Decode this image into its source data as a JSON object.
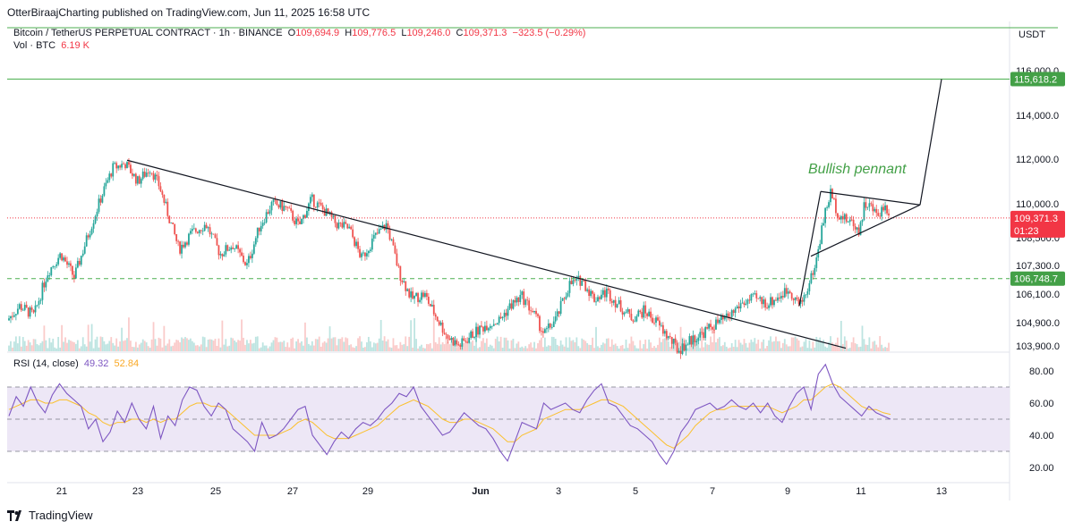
{
  "publisher": "OtterBiraajCharting published on TradingView.com, Jun 11, 2025 16:58 UTC",
  "symbol": "Bitcoin / TetherUS PERPETUAL CONTRACT · 1h · BINANCE",
  "ohlc": {
    "o_key": "O",
    "o": "109,694.9",
    "h_key": "H",
    "h": "109,776.5",
    "l_key": "L",
    "l": "109,246.0",
    "c_key": "C",
    "c": "109,371.3",
    "change": "−323.5 (−0.29%)"
  },
  "volume": {
    "label": "Vol · BTC",
    "value": "6.19 K"
  },
  "rsi_legend": {
    "label": "RSI (14, close)",
    "rsi": "49.32",
    "ma": "52.84"
  },
  "currency": "USDT",
  "logo": "TradingView",
  "colors": {
    "up": "#26a69a",
    "down": "#ef5350",
    "trend": "#131722",
    "level_green": "#4caf50",
    "rsi_line": "#7e57c2",
    "rsi_ma": "#fbc02d",
    "rsi_band": "#ede7f6",
    "price_line": "#f23645"
  },
  "chart_data": [
    {
      "type": "candlestick",
      "title": "Bitcoin / TetherUS PERPETUAL CONTRACT · 1h · BINANCE",
      "x_tick_labels": [
        "21",
        "23",
        "25",
        "27",
        "29",
        "Jun",
        "3",
        "5",
        "7",
        "9",
        "11",
        "13"
      ],
      "y_tick_labels": [
        "116,000.0",
        "114,000.0",
        "112,000.0",
        "110,000.0",
        "108,500.0",
        "107,300.0",
        "106,100.0",
        "104,900.0",
        "103,900.0"
      ],
      "ylim": [
        103700,
        117000
      ],
      "price_keypoints": [
        [
          0,
          105000
        ],
        [
          14,
          105600
        ],
        [
          30,
          105200
        ],
        [
          45,
          107000
        ],
        [
          60,
          107800
        ],
        [
          75,
          106800
        ],
        [
          92,
          108800
        ],
        [
          105,
          110300
        ],
        [
          118,
          111600
        ],
        [
          132,
          111800
        ],
        [
          146,
          111000
        ],
        [
          160,
          111600
        ],
        [
          170,
          110800
        ],
        [
          180,
          109500
        ],
        [
          192,
          108000
        ],
        [
          206,
          108700
        ],
        [
          222,
          109100
        ],
        [
          238,
          107800
        ],
        [
          252,
          108200
        ],
        [
          268,
          107300
        ],
        [
          282,
          109000
        ],
        [
          296,
          110000
        ],
        [
          312,
          109800
        ],
        [
          326,
          109000
        ],
        [
          340,
          110200
        ],
        [
          354,
          109700
        ],
        [
          368,
          109100
        ],
        [
          382,
          108900
        ],
        [
          396,
          107600
        ],
        [
          410,
          108500
        ],
        [
          424,
          109100
        ],
        [
          438,
          107000
        ],
        [
          452,
          105900
        ],
        [
          466,
          106100
        ],
        [
          480,
          105100
        ],
        [
          492,
          104300
        ],
        [
          505,
          103900
        ],
        [
          520,
          104400
        ],
        [
          535,
          104800
        ],
        [
          550,
          105000
        ],
        [
          562,
          105600
        ],
        [
          575,
          106000
        ],
        [
          588,
          105300
        ],
        [
          600,
          104400
        ],
        [
          614,
          105100
        ],
        [
          628,
          106500
        ],
        [
          642,
          106700
        ],
        [
          656,
          105900
        ],
        [
          670,
          106200
        ],
        [
          684,
          105600
        ],
        [
          698,
          105100
        ],
        [
          712,
          105400
        ],
        [
          726,
          104900
        ],
        [
          738,
          104300
        ],
        [
          750,
          103700
        ],
        [
          762,
          104100
        ],
        [
          775,
          104400
        ],
        [
          790,
          104800
        ],
        [
          805,
          105100
        ],
        [
          820,
          105700
        ],
        [
          835,
          105900
        ],
        [
          850,
          105700
        ],
        [
          862,
          106000
        ],
        [
          874,
          106300
        ],
        [
          886,
          105600
        ],
        [
          896,
          106500
        ],
        [
          904,
          107500
        ],
        [
          912,
          109300
        ],
        [
          920,
          110500
        ],
        [
          928,
          109600
        ],
        [
          936,
          109300
        ],
        [
          944,
          109200
        ],
        [
          952,
          108800
        ],
        [
          958,
          110000
        ],
        [
          964,
          109900
        ],
        [
          972,
          109500
        ],
        [
          980,
          109900
        ],
        [
          988,
          109500
        ],
        [
          995,
          109371
        ]
      ],
      "candle_count": 500,
      "last_price_label": "109,371.3",
      "countdown": "01:23",
      "level_labels": [
        "115,618.2",
        "106,748.7"
      ],
      "annotation": "Bullish pennant"
    },
    {
      "type": "line",
      "title": "RSI (14, close)",
      "series": [
        {
          "name": "RSI",
          "values": [
            52,
            64,
            58,
            70,
            60,
            54,
            65,
            72,
            66,
            62,
            58,
            44,
            50,
            36,
            42,
            55,
            48,
            60,
            50,
            44,
            58,
            38,
            52,
            46,
            62,
            70,
            68,
            58,
            52,
            60,
            56,
            44,
            40,
            36,
            30,
            48,
            38,
            40,
            44,
            50,
            56,
            58,
            40,
            34,
            28,
            36,
            42,
            38,
            44,
            48,
            46,
            50,
            56,
            60,
            66,
            64,
            70,
            58,
            52,
            46,
            40,
            42,
            48,
            54,
            50,
            46,
            44,
            38,
            30,
            24,
            36,
            48,
            46,
            44,
            60,
            56,
            58,
            60,
            56,
            54,
            62,
            68,
            72,
            60,
            58,
            52,
            46,
            44,
            40,
            36,
            28,
            22,
            30,
            42,
            48,
            56,
            58,
            60,
            56,
            58,
            62,
            58,
            56,
            60,
            54,
            60,
            52,
            48,
            58,
            66,
            70,
            56,
            78,
            84,
            72,
            64,
            60,
            56,
            52,
            58,
            54,
            52,
            50
          ]
        },
        {
          "name": "RSI-based MA",
          "values": [
            56,
            58,
            60,
            62,
            62,
            60,
            60,
            62,
            62,
            60,
            58,
            54,
            52,
            48,
            46,
            48,
            48,
            50,
            50,
            48,
            50,
            48,
            50,
            50,
            54,
            58,
            60,
            60,
            58,
            58,
            56,
            52,
            48,
            44,
            40,
            40,
            40,
            40,
            42,
            44,
            48,
            50,
            48,
            44,
            40,
            38,
            38,
            38,
            40,
            42,
            44,
            46,
            50,
            54,
            58,
            60,
            62,
            60,
            58,
            54,
            50,
            48,
            48,
            50,
            50,
            48,
            46,
            44,
            40,
            36,
            36,
            40,
            42,
            44,
            50,
            52,
            54,
            56,
            56,
            56,
            58,
            60,
            62,
            62,
            60,
            58,
            54,
            50,
            46,
            42,
            38,
            34,
            32,
            36,
            40,
            46,
            50,
            54,
            56,
            56,
            58,
            58,
            58,
            58,
            58,
            58,
            56,
            54,
            56,
            58,
            62,
            62,
            66,
            70,
            72,
            70,
            66,
            62,
            58,
            56,
            56,
            54,
            53
          ]
        }
      ],
      "y_tick_labels": [
        "80.00",
        "60.00",
        "40.00",
        "20.00"
      ],
      "ylim": [
        15,
        88
      ],
      "bands": [
        30,
        50,
        70
      ]
    }
  ]
}
